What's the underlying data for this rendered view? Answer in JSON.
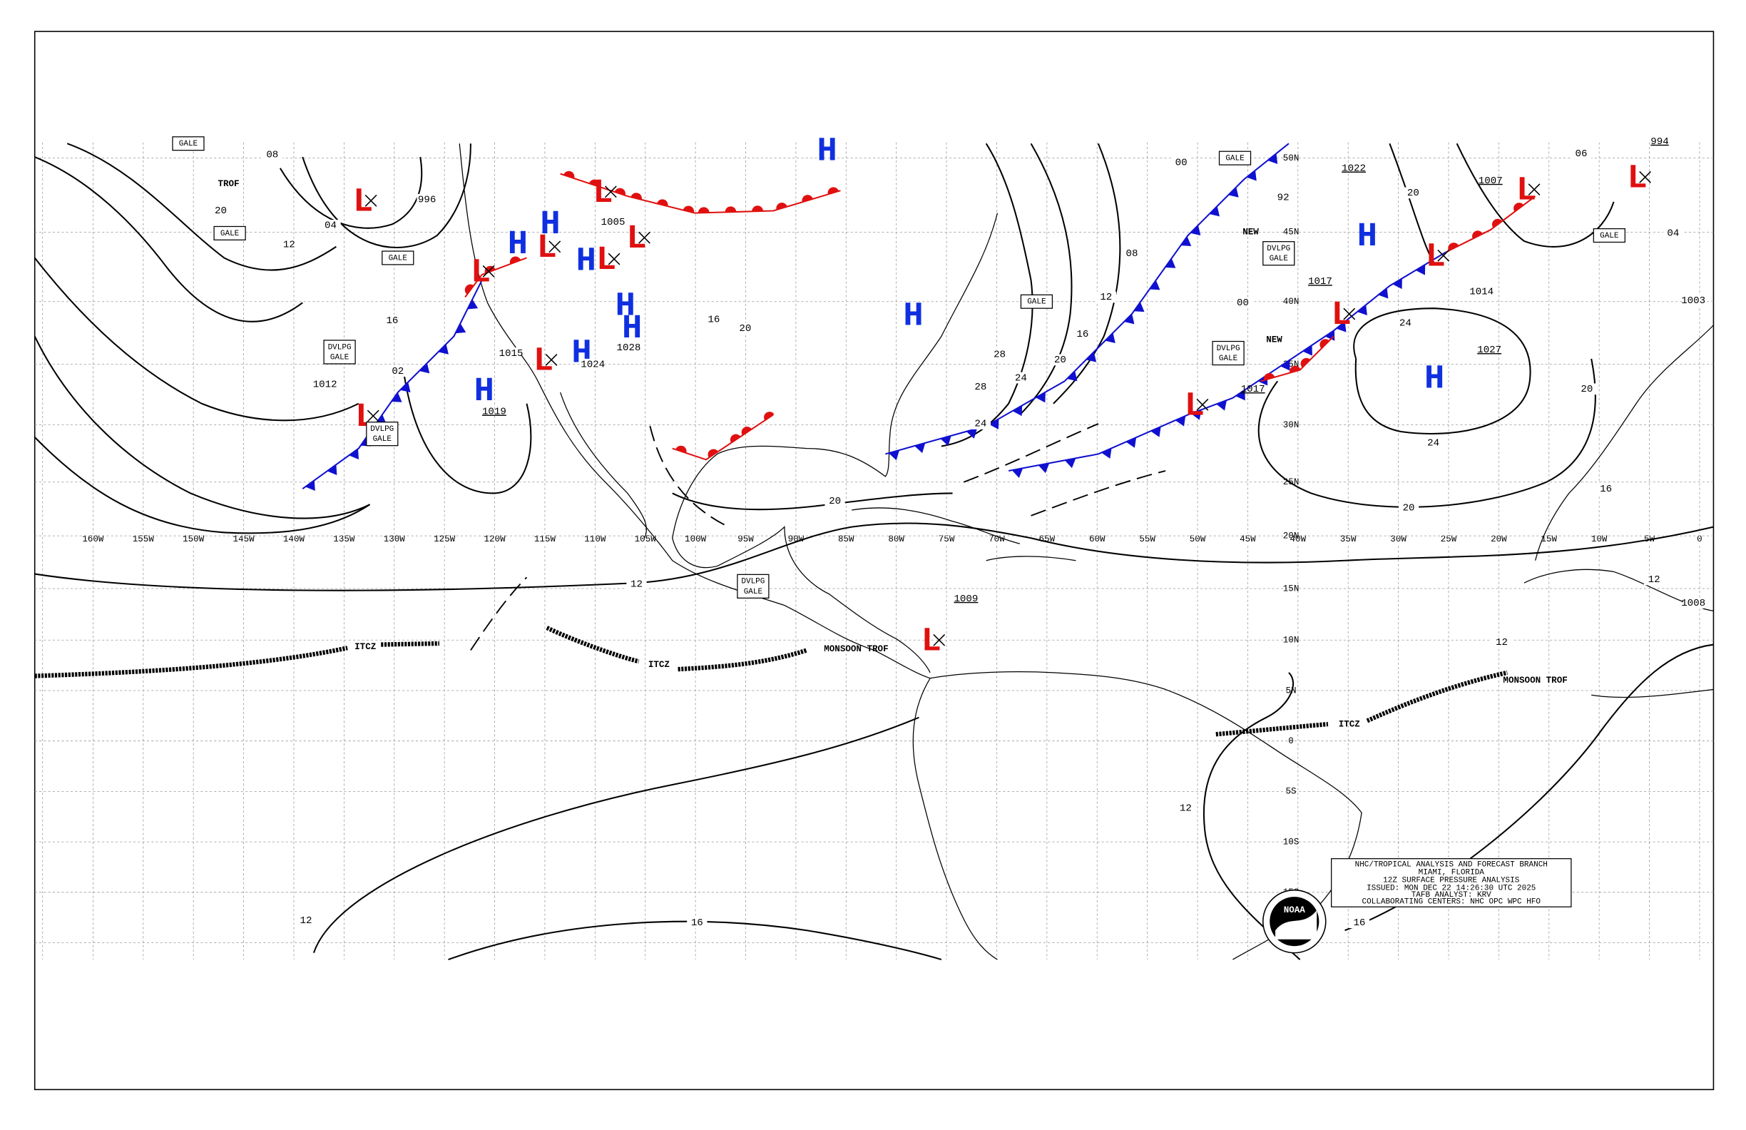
{
  "grid": {
    "longitude_labels": [
      "160W",
      "155W",
      "150W",
      "145W",
      "140W",
      "135W",
      "130W",
      "125W",
      "120W",
      "115W",
      "110W",
      "105W",
      "100W",
      "95W",
      "90W",
      "85W",
      "80W",
      "75W",
      "70W",
      "65W",
      "60W",
      "55W",
      "50W",
      "45W",
      "40W",
      "35W",
      "30W",
      "25W",
      "20W",
      "15W",
      "10W",
      "5W",
      "0"
    ],
    "latitude_labels": [
      "50N",
      "45N",
      "40N",
      "35N",
      "30N",
      "25N",
      "20N",
      "15N",
      "10N",
      "5N",
      "0",
      "5S",
      "10S",
      "15S"
    ]
  },
  "centers": [
    {
      "symbol": "L"
    },
    {
      "symbol": "L"
    },
    {
      "symbol": "H"
    },
    {
      "symbol": "H"
    },
    {
      "symbol": "L"
    },
    {
      "symbol": "H"
    },
    {
      "symbol": "L"
    },
    {
      "symbol": "L"
    },
    {
      "symbol": "L"
    },
    {
      "symbol": "H"
    },
    {
      "symbol": "H"
    },
    {
      "symbol": "H"
    },
    {
      "symbol": "L"
    },
    {
      "symbol": "H",
      "pressure": "1019"
    },
    {
      "symbol": "L"
    },
    {
      "symbol": "H"
    },
    {
      "symbol": "H"
    },
    {
      "symbol": "L",
      "pressure": "1017"
    },
    {
      "symbol": "L",
      "pressure": "1017"
    },
    {
      "symbol": "L"
    },
    {
      "symbol": "L",
      "pressure": "1007"
    },
    {
      "symbol": "L",
      "pressure": "994"
    },
    {
      "symbol": "H",
      "pressure": "1022"
    },
    {
      "symbol": "H",
      "pressure": "1027"
    },
    {
      "symbol": "L",
      "pressure": "1009"
    }
  ],
  "isobar_labels": [
    "08",
    "04",
    "20",
    "12",
    "16",
    "02",
    "996",
    "1012",
    "1015",
    "1005",
    "1024",
    "1028",
    "00",
    "92",
    "00",
    "08",
    "12",
    "16",
    "20",
    "24",
    "28",
    "28",
    "24",
    "20",
    "16",
    "20",
    "12",
    "12",
    "16",
    "12",
    "16",
    "12",
    "12",
    "16",
    "20",
    "24",
    "24",
    "20",
    "20",
    "06",
    "04",
    "1014",
    "1003",
    "1008"
  ],
  "boxed_labels": [
    {
      "lines": [
        "GALE"
      ]
    },
    {
      "lines": [
        "GALE"
      ]
    },
    {
      "lines": [
        "GALE"
      ]
    },
    {
      "lines": [
        "DVLPG",
        "GALE"
      ]
    },
    {
      "lines": [
        "DVLPG",
        "GALE"
      ]
    },
    {
      "lines": [
        "GALE"
      ]
    },
    {
      "lines": [
        "GALE"
      ]
    },
    {
      "lines": [
        "DVLPG",
        "GALE"
      ]
    },
    {
      "lines": [
        "DVLPG",
        "GALE"
      ]
    },
    {
      "lines": [
        "DVLPG",
        "GALE"
      ]
    },
    {
      "lines": [
        "GALE"
      ]
    }
  ],
  "feature_labels": [
    "TROF",
    "NEW",
    "NEW",
    "ITCZ",
    "ITCZ",
    "ITCZ",
    "MONSOON TROF",
    "MONSOON TROF"
  ],
  "info_box": {
    "lines": [
      "NHC/TROPICAL ANALYSIS AND FORECAST BRANCH",
      "MIAMI, FLORIDA",
      "12Z SURFACE PRESSURE ANALYSIS",
      "ISSUED: MON DEC 22 14:26:30 UTC 2025",
      "TAFB ANALYST: KRV",
      "COLLABORATING CENTERS: NHC OPC WPC HFO"
    ],
    "logo": "NOAA"
  }
}
